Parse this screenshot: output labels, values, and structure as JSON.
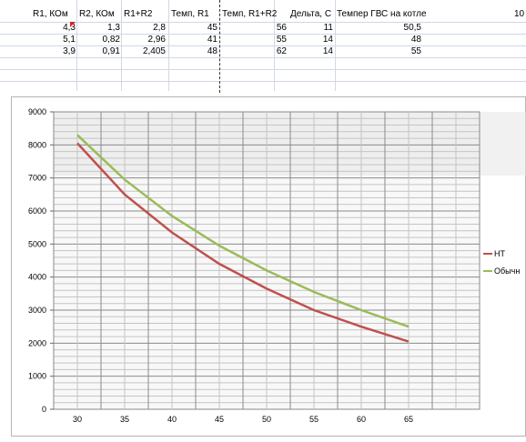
{
  "sheet": {
    "headers": [
      "R1, КОм",
      "R2, КОм",
      "R1+R2",
      "Темп, R1",
      "Темп, R1+R2",
      "Дельта, С",
      "Темпер ГВС на котле",
      "10"
    ],
    "rows": [
      [
        "4,3",
        "1,3",
        "2,8",
        "45",
        "56",
        "11",
        "50,5"
      ],
      [
        "5,1",
        "0,82",
        "2,96",
        "41",
        "55",
        "14",
        "48"
      ],
      [
        "3,9",
        "0,91",
        "2,405",
        "48",
        "62",
        "14",
        "55"
      ]
    ]
  },
  "chart_data": {
    "type": "line",
    "x": [
      30,
      35,
      40,
      45,
      50,
      55,
      60,
      65
    ],
    "xlim": [
      27.5,
      72.5
    ],
    "ylim": [
      0,
      9000
    ],
    "yticks": [
      0,
      1000,
      2000,
      3000,
      4000,
      5000,
      6000,
      7000,
      8000,
      9000
    ],
    "xticks": [
      30,
      35,
      40,
      45,
      50,
      55,
      60,
      65
    ],
    "grid": true,
    "legend_position": "right",
    "series": [
      {
        "name": "НТ",
        "color": "#c0504d",
        "values": [
          8050,
          6500,
          5350,
          4400,
          3650,
          3000,
          2500,
          2050
        ]
      },
      {
        "name": "Обычн",
        "color": "#9bbb59",
        "values": [
          8300,
          6950,
          5850,
          4950,
          4200,
          3550,
          3000,
          2500
        ]
      }
    ]
  }
}
